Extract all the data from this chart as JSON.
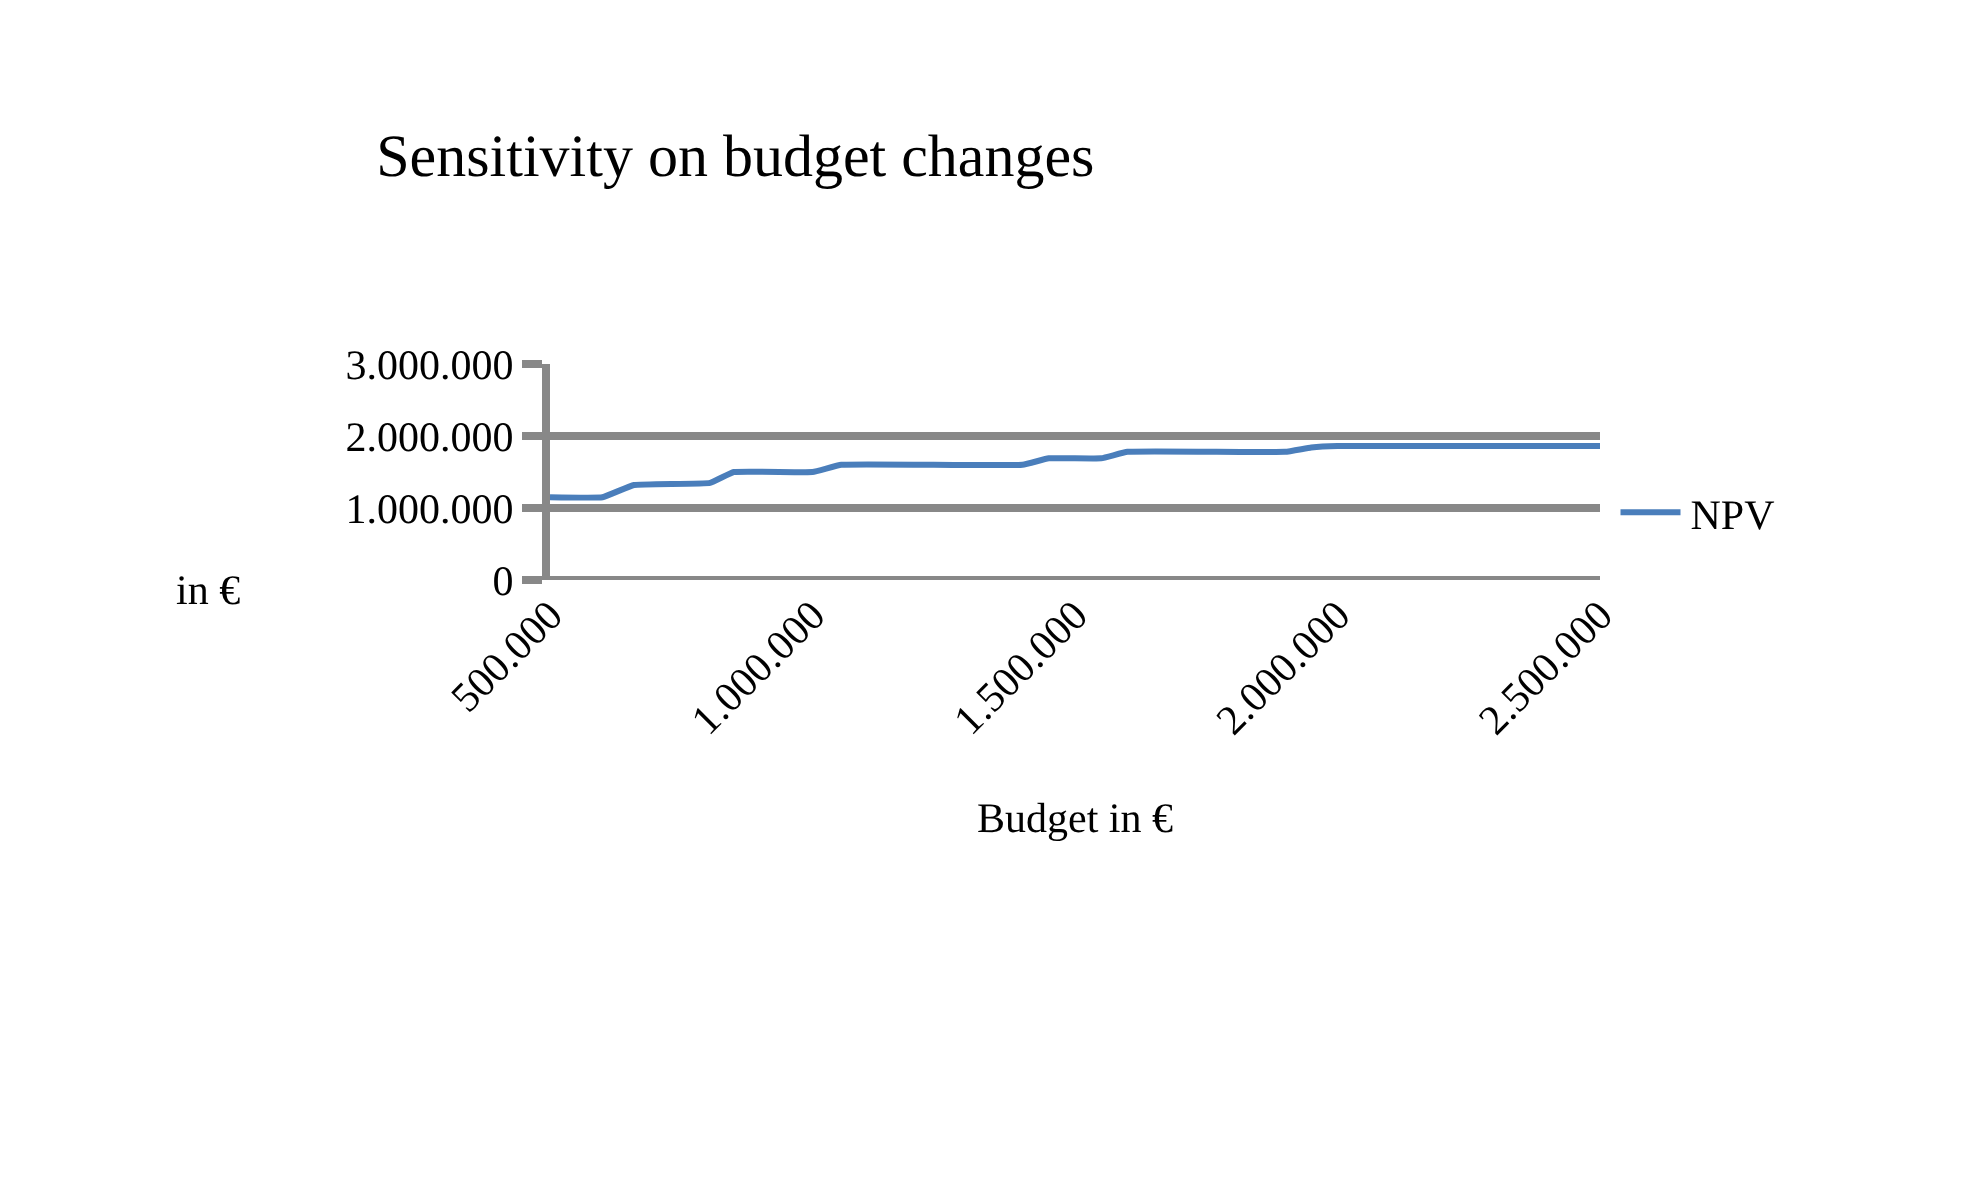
{
  "chart_data": {
    "type": "line",
    "title": "Sensitivity on budget changes",
    "xlabel": "Budget in €",
    "ylabel": "in €",
    "series": [
      {
        "name": "NPV",
        "color": "#4a7ebb",
        "x": [
          500000,
          600000,
          660000,
          805000,
          850000,
          1000000,
          1055000,
          1400000,
          1450000,
          1550000,
          1600000,
          1900000,
          1950000,
          2000000,
          2500000
        ],
        "values": [
          1150000,
          1150000,
          1320000,
          1350000,
          1500000,
          1500000,
          1600000,
          1600000,
          1690000,
          1690000,
          1780000,
          1780000,
          1840000,
          1860000,
          1860000
        ]
      }
    ],
    "xlim": [
      500000,
      2500000
    ],
    "xticks": [
      {
        "value": 500000,
        "label": "500.000"
      },
      {
        "value": 1000000,
        "label": "1.000.000"
      },
      {
        "value": 1500000,
        "label": "1.500.000"
      },
      {
        "value": 2000000,
        "label": "2.000.000"
      },
      {
        "value": 2500000,
        "label": "2.500.000"
      }
    ],
    "ylim": [
      0,
      3000000
    ],
    "yticks": [
      0,
      {
        "value": 1000000,
        "label": "1.000.000"
      },
      {
        "value": 2000000,
        "label": "2.000.000"
      },
      {
        "value": 3000000,
        "label": "3.000.000"
      }
    ],
    "grid": "y",
    "legend": "right",
    "marker": "none",
    "line_style": "solid"
  }
}
